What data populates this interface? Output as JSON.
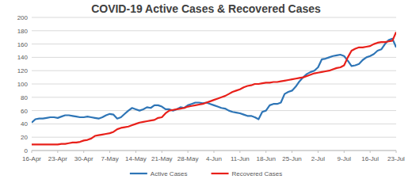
{
  "chart_data": {
    "type": "line",
    "title": "COVID-19 Active Cases & Recovered Cases",
    "categories": [
      "16-Apr",
      null,
      null,
      null,
      null,
      null,
      null,
      "23-Apr",
      null,
      null,
      null,
      null,
      null,
      null,
      "30-Apr",
      null,
      null,
      null,
      null,
      null,
      null,
      "7-May",
      null,
      null,
      null,
      null,
      null,
      null,
      "14-May",
      null,
      null,
      null,
      null,
      null,
      null,
      "21-May",
      null,
      null,
      null,
      null,
      null,
      null,
      "28-May",
      null,
      null,
      null,
      null,
      null,
      null,
      "4-Jun",
      null,
      null,
      null,
      null,
      null,
      null,
      "11-Jun",
      null,
      null,
      null,
      null,
      null,
      null,
      "18-Jun",
      null,
      null,
      null,
      null,
      null,
      null,
      "25-Jun",
      null,
      null,
      null,
      null,
      null,
      null,
      "2-Jul",
      null,
      null,
      null,
      null,
      null,
      null,
      "9-Jul",
      null,
      null,
      null,
      null,
      null,
      null,
      "16-Jul",
      null,
      null,
      null,
      null,
      null,
      null,
      "23-Jul"
    ],
    "series": [
      {
        "name": "Active Cases",
        "color": "#2e75b6",
        "values": [
          42,
          47,
          48,
          48,
          49,
          50,
          50,
          49,
          51,
          53,
          53,
          52,
          51,
          50,
          50,
          51,
          50,
          49,
          48,
          50,
          53,
          55,
          54,
          48,
          50,
          55,
          60,
          64,
          62,
          60,
          62,
          65,
          64,
          68,
          68,
          66,
          62,
          62,
          60,
          62,
          65,
          64,
          68,
          70,
          72,
          72,
          71,
          72,
          70,
          68,
          66,
          64,
          63,
          60,
          58,
          57,
          56,
          54,
          52,
          52,
          50,
          47,
          58,
          60,
          68,
          70,
          70,
          72,
          85,
          88,
          90,
          96,
          104,
          110,
          115,
          118,
          120,
          125,
          137,
          138,
          140,
          142,
          143,
          144,
          142,
          135,
          127,
          128,
          130,
          136,
          140,
          142,
          145,
          150,
          152,
          160,
          166,
          168,
          155
        ]
      },
      {
        "name": "Recovered Cases",
        "color": "#e8201a",
        "values": [
          9,
          9,
          9,
          9,
          9,
          9,
          9,
          9,
          10,
          10,
          11,
          12,
          12,
          13,
          15,
          16,
          18,
          22,
          23,
          24,
          25,
          26,
          28,
          32,
          34,
          35,
          36,
          38,
          40,
          42,
          43,
          44,
          45,
          46,
          49,
          50,
          56,
          60,
          61,
          62,
          63,
          64,
          66,
          67,
          68,
          69,
          70,
          72,
          74,
          76,
          78,
          80,
          82,
          85,
          88,
          90,
          92,
          95,
          97,
          98,
          100,
          100,
          101,
          102,
          102,
          103,
          103,
          104,
          105,
          106,
          107,
          108,
          109,
          110,
          112,
          114,
          116,
          117,
          118,
          119,
          120,
          122,
          124,
          125,
          128,
          140,
          150,
          153,
          155,
          155,
          156,
          157,
          160,
          162,
          163,
          163,
          164,
          165,
          178
        ]
      }
    ],
    "ylim": [
      0,
      200
    ],
    "yticks": [
      0,
      20,
      40,
      60,
      80,
      100,
      120,
      140,
      160,
      180,
      200
    ],
    "grid": true,
    "legend": "bottom"
  }
}
